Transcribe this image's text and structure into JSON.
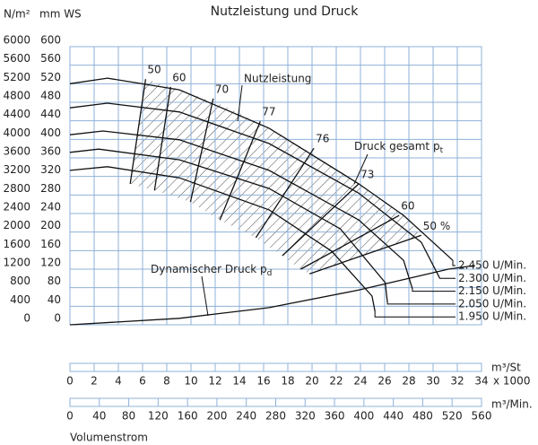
{
  "chart_data": {
    "type": "line",
    "title": "Nutzleistung und Druck",
    "y_label": "mm WS",
    "y2_label": "N/m²",
    "x_label": "m³/Min.",
    "x2_label": "m³/St",
    "x2_label_factor": "x 1000",
    "x_axis_title": "Volumenstrom",
    "xlim": [
      0,
      560
    ],
    "xticks": [
      0,
      40,
      80,
      120,
      160,
      200,
      240,
      280,
      320,
      360,
      400,
      440,
      480,
      520,
      560
    ],
    "x2lim": [
      0,
      34
    ],
    "x2ticks": [
      0,
      2,
      4,
      6,
      8,
      10,
      12,
      14,
      16,
      18,
      20,
      22,
      24,
      26,
      28,
      30,
      32,
      34
    ],
    "ylim": [
      0,
      600
    ],
    "yticks": [
      0,
      40,
      80,
      120,
      160,
      200,
      240,
      280,
      320,
      360,
      400,
      440,
      480,
      520,
      560,
      600
    ],
    "y2lim": [
      0,
      6000
    ],
    "y2ticks": [
      0,
      400,
      800,
      1200,
      1600,
      2000,
      2400,
      2800,
      3200,
      3600,
      4000,
      4400,
      4800,
      5200,
      5600,
      6000
    ],
    "grid": true,
    "grid_color": "#8fb0d8",
    "series": [
      {
        "name": "2.450 U/Min.",
        "color": "#000000",
        "x": [
          0,
          51,
          149,
          271,
          393,
          454,
          521
        ],
        "values": [
          520,
          532,
          507,
          424,
          304,
          236,
          139
        ]
      },
      {
        "name": "2.300 U/Min.",
        "color": "#000000",
        "x": [
          0,
          51,
          149,
          271,
          393,
          478,
          503
        ],
        "values": [
          468,
          478,
          459,
          391,
          284,
          178,
          101
        ]
      },
      {
        "name": "2.150 U/Min.",
        "color": "#000000",
        "x": [
          0,
          45,
          149,
          271,
          393,
          454,
          466
        ],
        "values": [
          410,
          418,
          399,
          333,
          226,
          139,
          77
        ]
      },
      {
        "name": "2.050 U/Min.",
        "color": "#000000",
        "x": [
          0,
          39,
          149,
          271,
          368,
          429,
          432
        ],
        "values": [
          372,
          379,
          356,
          294,
          207,
          91,
          48
        ]
      },
      {
        "name": "1.950 U/Min.",
        "color": "#000000",
        "x": [
          0,
          51,
          149,
          271,
          356,
          411,
          415
        ],
        "values": [
          333,
          341,
          317,
          248,
          159,
          62,
          29
        ]
      }
    ],
    "dynamic_pressure": {
      "x": [
        0,
        149,
        271,
        393,
        515,
        551
      ],
      "values": [
        0,
        14,
        37,
        75,
        120,
        128
      ]
    },
    "efficiency_lines": [
      {
        "label": "50",
        "x": [
          103,
          82
        ],
        "values": [
          530,
          304
        ]
      },
      {
        "label": "60",
        "x": [
          137,
          115
        ],
        "values": [
          513,
          290
        ]
      },
      {
        "label": "70",
        "x": [
          195,
          164
        ],
        "values": [
          488,
          265
        ]
      },
      {
        "label": "77",
        "x": [
          259,
          204
        ],
        "values": [
          439,
          226
        ]
      },
      {
        "label": "76",
        "x": [
          332,
          253
        ],
        "values": [
          381,
          188
        ]
      },
      {
        "label": "73",
        "x": [
          393,
          289
        ],
        "values": [
          304,
          149
        ]
      },
      {
        "label": "60",
        "x": [
          448,
          314
        ],
        "values": [
          236,
          120
        ]
      },
      {
        "label": "50 %",
        "x": [
          478,
          326
        ],
        "values": [
          193,
          110
        ]
      }
    ],
    "annotations": {
      "power": "Nutzleistung",
      "total_pressure": "Druck gesamt p",
      "total_pressure_sub": "t",
      "dynamic_pressure": "Dynamischer Druck p",
      "dynamic_pressure_sub": "d"
    }
  }
}
